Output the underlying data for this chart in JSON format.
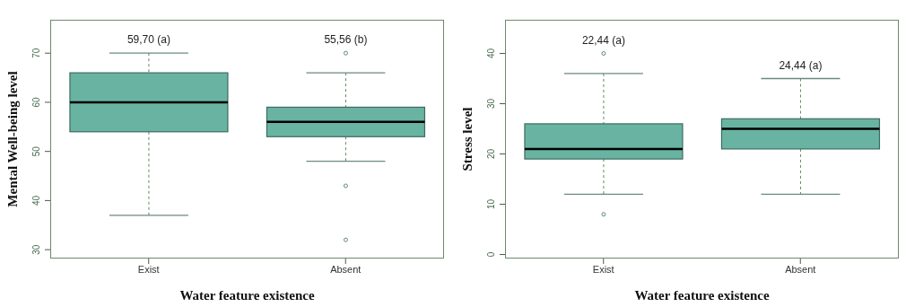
{
  "chart_data": [
    {
      "type": "box",
      "xlabel": "Water feature existence",
      "ylabel": "Mental Well-being level",
      "categories": [
        "Exist",
        "Absent"
      ],
      "color": "#69b3a2",
      "boxes": [
        {
          "low": 37,
          "q1": 54,
          "median": 60,
          "q3": 66,
          "high": 70
        },
        {
          "low": 48,
          "q1": 53,
          "median": 56,
          "q3": 59,
          "high": 66,
          "outliers": [
            70,
            43,
            32
          ]
        }
      ],
      "ylim": [
        28.2,
        76.8
      ],
      "yticks": [
        30,
        40,
        50,
        60,
        70
      ],
      "annotations": [
        "59,70 (a)",
        "55,56 (b)"
      ]
    },
    {
      "type": "box",
      "xlabel": "Water feature existence",
      "ylabel": "Stress level",
      "categories": [
        "Exist",
        "Absent"
      ],
      "color": "#69b3a2",
      "boxes": [
        {
          "low": 12,
          "q1": 19,
          "median": 21,
          "q3": 26,
          "high": 36,
          "outliers": [
            40,
            8
          ]
        },
        {
          "low": 12,
          "q1": 21,
          "median": 25,
          "q3": 27,
          "high": 35
        }
      ],
      "ylim": [
        -0.8,
        46.7
      ],
      "yticks": [
        0,
        10,
        20,
        30,
        40
      ],
      "annotations": [
        "22,44 (a)",
        "24,44 (a)"
      ]
    }
  ]
}
